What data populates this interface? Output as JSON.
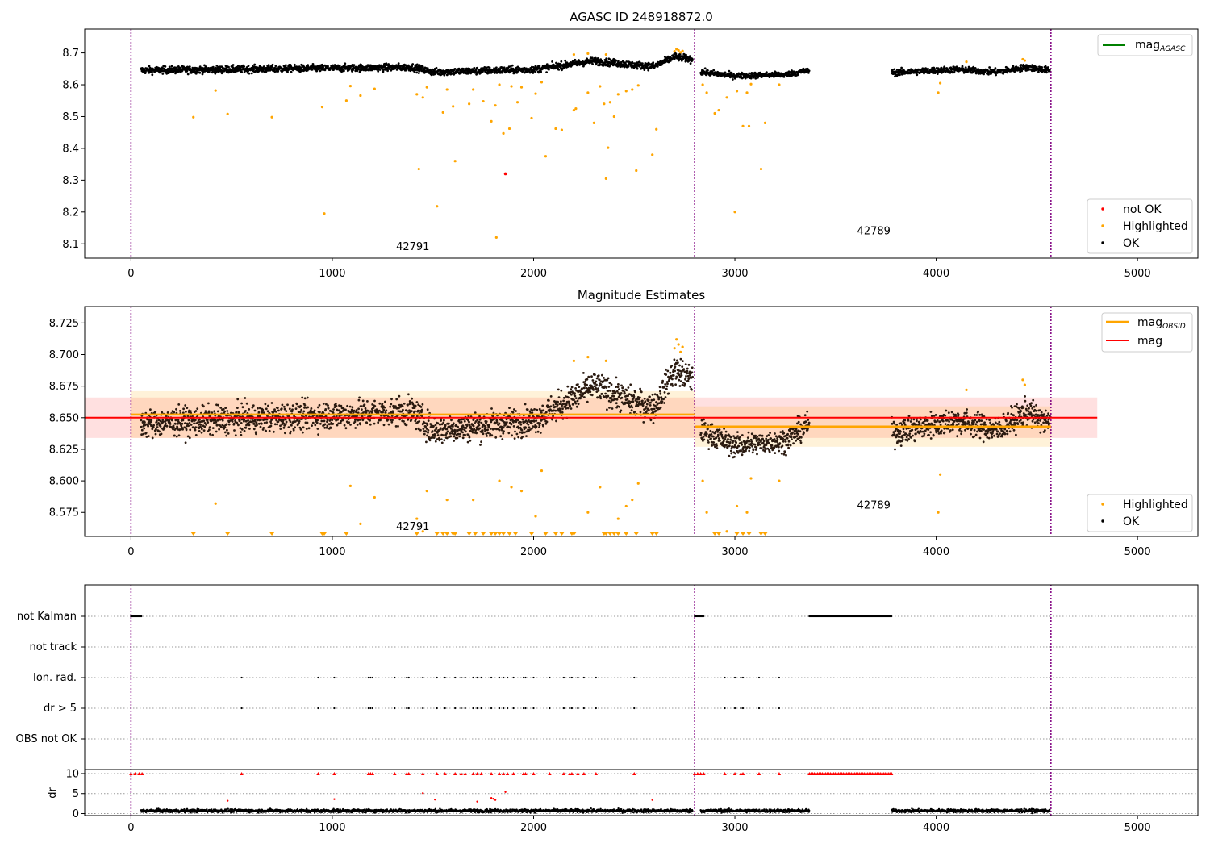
{
  "chart_data": [
    {
      "type": "scatter",
      "title": "AGASC ID 248918872.0",
      "xlim": [
        -230,
        5300
      ],
      "ylim": [
        8.055,
        8.775
      ],
      "x_ticks": [
        "0",
        "1000",
        "2000",
        "3000",
        "4000",
        "5000"
      ],
      "y_ticks": [
        "8.1",
        "8.2",
        "8.3",
        "8.4",
        "8.5",
        "8.6",
        "8.7"
      ],
      "obsid_boundaries": [
        0,
        2800,
        4570
      ],
      "annotations": [
        {
          "text": "42791",
          "x": 1400,
          "y": 8.08
        },
        {
          "text": "42789",
          "x": 3690,
          "y": 8.13
        }
      ],
      "legend_lines": [
        {
          "label": "mag",
          "subscript": "AGASC",
          "color": "#008000"
        }
      ],
      "legend_points": [
        {
          "label": "not OK",
          "color": "#ff0000"
        },
        {
          "label": "Highlighted",
          "color": "#ffa500"
        },
        {
          "label": "OK",
          "color": "#000000"
        }
      ],
      "series": [
        {
          "name": "OK",
          "color": "#000000",
          "segments": [
            {
              "x0": 50,
              "x1": 2790,
              "baseline": 8.648,
              "trend": [
                [
                  0,
                  8.645
                ],
                [
                  1000,
                  8.652
                ],
                [
                  1400,
                  8.655
                ],
                [
                  1500,
                  8.64
                ],
                [
                  2000,
                  8.648
                ],
                [
                  2300,
                  8.675
                ],
                [
                  2500,
                  8.662
                ],
                [
                  2600,
                  8.658
                ],
                [
                  2700,
                  8.688
                ],
                [
                  2790,
                  8.68
                ]
              ],
              "noise": 0.011
            },
            {
              "x0": 2830,
              "x1": 3370,
              "baseline": 8.635,
              "trend": [
                [
                  2830,
                  8.64
                ],
                [
                  3000,
                  8.628
                ],
                [
                  3250,
                  8.632
                ],
                [
                  3370,
                  8.645
                ]
              ],
              "noise": 0.009
            },
            {
              "x0": 3780,
              "x1": 4565,
              "baseline": 8.645,
              "trend": [
                [
                  3780,
                  8.638
                ],
                [
                  4100,
                  8.648
                ],
                [
                  4300,
                  8.64
                ],
                [
                  4450,
                  8.655
                ],
                [
                  4565,
                  8.645
                ]
              ],
              "noise": 0.01
            }
          ]
        },
        {
          "name": "Highlighted",
          "color": "#ffa500",
          "points": [
            [
              310,
              8.498
            ],
            [
              420,
              8.582
            ],
            [
              480,
              8.508
            ],
            [
              700,
              8.498
            ],
            [
              950,
              8.53
            ],
            [
              960,
              8.195
            ],
            [
              1070,
              8.55
            ],
            [
              1090,
              8.596
            ],
            [
              1140,
              8.566
            ],
            [
              1210,
              8.587
            ],
            [
              1420,
              8.57
            ],
            [
              1430,
              8.335
            ],
            [
              1450,
              8.56
            ],
            [
              1470,
              8.592
            ],
            [
              1520,
              8.218
            ],
            [
              1550,
              8.513
            ],
            [
              1570,
              8.585
            ],
            [
              1600,
              8.532
            ],
            [
              1610,
              8.36
            ],
            [
              1680,
              8.54
            ],
            [
              1700,
              8.585
            ],
            [
              1750,
              8.548
            ],
            [
              1790,
              8.485
            ],
            [
              1810,
              8.535
            ],
            [
              1815,
              8.12
            ],
            [
              1830,
              8.6
            ],
            [
              1850,
              8.447
            ],
            [
              1880,
              8.462
            ],
            [
              1890,
              8.595
            ],
            [
              1920,
              8.545
            ],
            [
              1940,
              8.592
            ],
            [
              1990,
              8.495
            ],
            [
              2010,
              8.572
            ],
            [
              2040,
              8.608
            ],
            [
              2060,
              8.375
            ],
            [
              2110,
              8.462
            ],
            [
              2140,
              8.458
            ],
            [
              2200,
              8.52
            ],
            [
              2210,
              8.525
            ],
            [
              2270,
              8.575
            ],
            [
              2300,
              8.48
            ],
            [
              2330,
              8.595
            ],
            [
              2350,
              8.54
            ],
            [
              2360,
              8.305
            ],
            [
              2370,
              8.402
            ],
            [
              2380,
              8.545
            ],
            [
              2400,
              8.5
            ],
            [
              2420,
              8.57
            ],
            [
              2460,
              8.58
            ],
            [
              2490,
              8.585
            ],
            [
              2510,
              8.33
            ],
            [
              2520,
              8.598
            ],
            [
              2590,
              8.38
            ],
            [
              2610,
              8.46
            ],
            [
              2700,
              8.705
            ],
            [
              2710,
              8.712
            ],
            [
              2720,
              8.708
            ],
            [
              2730,
              8.702
            ],
            [
              2740,
              8.706
            ],
            [
              2840,
              8.6
            ],
            [
              2860,
              8.575
            ],
            [
              2900,
              8.51
            ],
            [
              2920,
              8.52
            ],
            [
              2960,
              8.56
            ],
            [
              3000,
              8.2
            ],
            [
              3010,
              8.58
            ],
            [
              3040,
              8.47
            ],
            [
              3060,
              8.575
            ],
            [
              3070,
              8.47
            ],
            [
              3080,
              8.602
            ],
            [
              3130,
              8.335
            ],
            [
              3150,
              8.48
            ],
            [
              3220,
              8.6
            ],
            [
              4010,
              8.575
            ],
            [
              4020,
              8.605
            ],
            [
              4150,
              8.672
            ],
            [
              4430,
              8.68
            ],
            [
              4440,
              8.676
            ],
            [
              2200,
              8.695
            ],
            [
              2270,
              8.698
            ],
            [
              2360,
              8.695
            ]
          ]
        },
        {
          "name": "not OK",
          "color": "#ff0000",
          "points": [
            [
              1860,
              8.32
            ]
          ]
        }
      ]
    },
    {
      "type": "scatter",
      "title": "Magnitude Estimates",
      "xlim": [
        -230,
        5300
      ],
      "ylim": [
        8.556,
        8.738
      ],
      "x_ticks": [
        "0",
        "1000",
        "2000",
        "3000",
        "4000",
        "5000"
      ],
      "y_ticks": [
        "8.575",
        "8.600",
        "8.625",
        "8.650",
        "8.675",
        "8.700",
        "8.725"
      ],
      "obsid_boundaries": [
        0,
        2800,
        4570
      ],
      "annotations": [
        {
          "text": "42791",
          "x": 1400,
          "y": 8.561
        },
        {
          "text": "42789",
          "x": 3690,
          "y": 8.578
        }
      ],
      "legend_lines": [
        {
          "label": "mag",
          "subscript": "OBSID",
          "color": "#ffa500"
        },
        {
          "label": "mag",
          "subscript": "",
          "color": "#ff0000"
        }
      ],
      "legend_points": [
        {
          "label": "Highlighted",
          "color": "#ffa500"
        },
        {
          "label": "OK",
          "color": "#000000"
        }
      ],
      "mag": {
        "value": 8.65,
        "band": [
          8.634,
          8.666
        ],
        "x": [
          -230,
          4800
        ],
        "color": "#ff0000"
      },
      "mag_obsid": [
        {
          "x": [
            0,
            2800
          ],
          "value": 8.6525,
          "band": [
            8.634,
            8.671
          ]
        },
        {
          "x": [
            2800,
            4570
          ],
          "value": 8.643,
          "band": [
            8.627,
            8.659
          ]
        }
      ],
      "series": [
        {
          "name": "Highlighted (clipped below axis)",
          "color": "#ffa500",
          "x": [
            310,
            480,
            700,
            950,
            960,
            1070,
            1420,
            1520,
            1550,
            1570,
            1600,
            1610,
            1680,
            1710,
            1750,
            1790,
            1810,
            1830,
            1850,
            1880,
            1910,
            1990,
            2060,
            2110,
            2140,
            2190,
            2200,
            2350,
            2360,
            2380,
            2400,
            2420,
            2460,
            2510,
            2590,
            2610,
            2900,
            2920,
            3010,
            3040,
            3070,
            3130,
            3150
          ]
        }
      ]
    },
    {
      "type": "scatter",
      "title": "",
      "xlim": [
        -230,
        5300
      ],
      "x_ticks": [
        "0",
        "1000",
        "2000",
        "3000",
        "4000",
        "5000"
      ],
      "flag_rows": [
        "not Kalman",
        "not track",
        "Ion. rad.",
        "dr > 5",
        "OBS not OK"
      ],
      "obsid_boundaries": [
        0,
        2800,
        4570
      ],
      "flags": {
        "not Kalman": [
          [
            0,
            55
          ],
          [
            2800,
            2845
          ],
          [
            3370,
            3780
          ]
        ],
        "not track": [],
        "Ion. rad.": [
          550,
          930,
          1010,
          1180,
          1190,
          1200,
          1310,
          1370,
          1380,
          1450,
          1520,
          1560,
          1610,
          1640,
          1660,
          1700,
          1720,
          1740,
          1790,
          1830,
          1850,
          1870,
          1900,
          1950,
          1960,
          2000,
          2080,
          2150,
          2180,
          2190,
          2220,
          2250,
          2310,
          2500,
          2950,
          3000,
          3030,
          3040,
          3120,
          3220
        ],
        "dr > 5": [
          550,
          930,
          1010,
          1180,
          1190,
          1200,
          1310,
          1370,
          1380,
          1450,
          1520,
          1560,
          1610,
          1640,
          1660,
          1700,
          1720,
          1740,
          1790,
          1830,
          1850,
          1870,
          1900,
          1950,
          1960,
          2000,
          2080,
          2150,
          2180,
          2190,
          2220,
          2250,
          2310,
          2500,
          2950,
          3000,
          3030,
          3040,
          3120,
          3220
        ],
        "OBS not OK": []
      },
      "dr": {
        "ylabel": "dr",
        "y_ticks": [
          "0",
          "5",
          "10"
        ],
        "ylim": [
          -0.5,
          11
        ],
        "clipped_red_x": [
          0,
          20,
          40,
          55,
          550,
          930,
          1010,
          1180,
          1190,
          1200,
          1310,
          1370,
          1380,
          1450,
          1520,
          1560,
          1610,
          1640,
          1660,
          1700,
          1720,
          1740,
          1790,
          1830,
          1850,
          1870,
          1900,
          1950,
          1960,
          2000,
          2080,
          2150,
          2180,
          2190,
          2220,
          2250,
          2310,
          2500,
          2800,
          2815,
          2830,
          2845,
          2950,
          3000,
          3030,
          3040,
          3120,
          3220
        ],
        "clipped_red_range": [
          3370,
          3780
        ],
        "red_points": [
          [
            480,
            3.2
          ],
          [
            1010,
            3.6
          ],
          [
            1450,
            5.1
          ],
          [
            1510,
            3.5
          ],
          [
            1720,
            3.0
          ],
          [
            1790,
            3.9
          ],
          [
            1800,
            3.7
          ],
          [
            1810,
            3.4
          ],
          [
            1860,
            5.4
          ],
          [
            2590,
            3.4
          ]
        ],
        "black_segments": [
          [
            50,
            2790
          ],
          [
            2830,
            3370
          ],
          [
            3780,
            4565
          ]
        ]
      }
    }
  ]
}
